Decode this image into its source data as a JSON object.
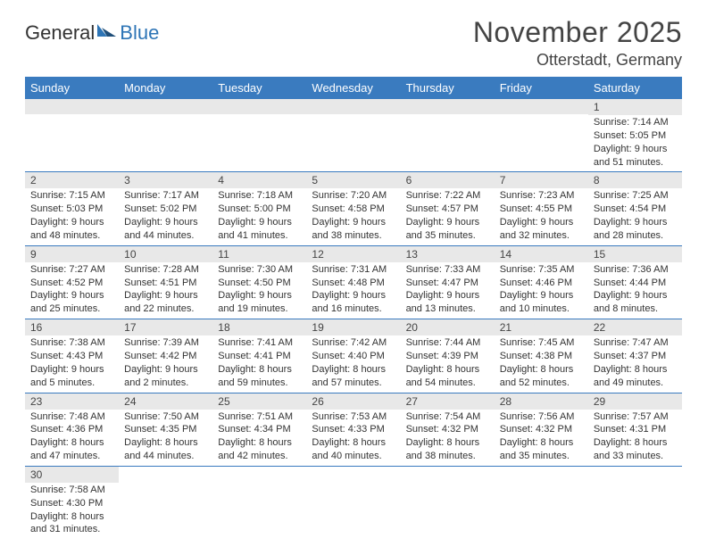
{
  "logo": {
    "general": "General",
    "blue": "Blue"
  },
  "title": "November 2025",
  "location": "Otterstadt, Germany",
  "colors": {
    "header_bg": "#3a7bbf",
    "header_text": "#ffffff",
    "daynum_bg": "#e8e8e8",
    "border": "#3a7bbf",
    "logo_blue": "#2e75b6",
    "text": "#333333"
  },
  "weekdays": [
    "Sunday",
    "Monday",
    "Tuesday",
    "Wednesday",
    "Thursday",
    "Friday",
    "Saturday"
  ],
  "weeks": [
    [
      null,
      null,
      null,
      null,
      null,
      null,
      {
        "n": "1",
        "sunrise": "Sunrise: 7:14 AM",
        "sunset": "Sunset: 5:05 PM",
        "day1": "Daylight: 9 hours",
        "day2": "and 51 minutes."
      }
    ],
    [
      {
        "n": "2",
        "sunrise": "Sunrise: 7:15 AM",
        "sunset": "Sunset: 5:03 PM",
        "day1": "Daylight: 9 hours",
        "day2": "and 48 minutes."
      },
      {
        "n": "3",
        "sunrise": "Sunrise: 7:17 AM",
        "sunset": "Sunset: 5:02 PM",
        "day1": "Daylight: 9 hours",
        "day2": "and 44 minutes."
      },
      {
        "n": "4",
        "sunrise": "Sunrise: 7:18 AM",
        "sunset": "Sunset: 5:00 PM",
        "day1": "Daylight: 9 hours",
        "day2": "and 41 minutes."
      },
      {
        "n": "5",
        "sunrise": "Sunrise: 7:20 AM",
        "sunset": "Sunset: 4:58 PM",
        "day1": "Daylight: 9 hours",
        "day2": "and 38 minutes."
      },
      {
        "n": "6",
        "sunrise": "Sunrise: 7:22 AM",
        "sunset": "Sunset: 4:57 PM",
        "day1": "Daylight: 9 hours",
        "day2": "and 35 minutes."
      },
      {
        "n": "7",
        "sunrise": "Sunrise: 7:23 AM",
        "sunset": "Sunset: 4:55 PM",
        "day1": "Daylight: 9 hours",
        "day2": "and 32 minutes."
      },
      {
        "n": "8",
        "sunrise": "Sunrise: 7:25 AM",
        "sunset": "Sunset: 4:54 PM",
        "day1": "Daylight: 9 hours",
        "day2": "and 28 minutes."
      }
    ],
    [
      {
        "n": "9",
        "sunrise": "Sunrise: 7:27 AM",
        "sunset": "Sunset: 4:52 PM",
        "day1": "Daylight: 9 hours",
        "day2": "and 25 minutes."
      },
      {
        "n": "10",
        "sunrise": "Sunrise: 7:28 AM",
        "sunset": "Sunset: 4:51 PM",
        "day1": "Daylight: 9 hours",
        "day2": "and 22 minutes."
      },
      {
        "n": "11",
        "sunrise": "Sunrise: 7:30 AM",
        "sunset": "Sunset: 4:50 PM",
        "day1": "Daylight: 9 hours",
        "day2": "and 19 minutes."
      },
      {
        "n": "12",
        "sunrise": "Sunrise: 7:31 AM",
        "sunset": "Sunset: 4:48 PM",
        "day1": "Daylight: 9 hours",
        "day2": "and 16 minutes."
      },
      {
        "n": "13",
        "sunrise": "Sunrise: 7:33 AM",
        "sunset": "Sunset: 4:47 PM",
        "day1": "Daylight: 9 hours",
        "day2": "and 13 minutes."
      },
      {
        "n": "14",
        "sunrise": "Sunrise: 7:35 AM",
        "sunset": "Sunset: 4:46 PM",
        "day1": "Daylight: 9 hours",
        "day2": "and 10 minutes."
      },
      {
        "n": "15",
        "sunrise": "Sunrise: 7:36 AM",
        "sunset": "Sunset: 4:44 PM",
        "day1": "Daylight: 9 hours",
        "day2": "and 8 minutes."
      }
    ],
    [
      {
        "n": "16",
        "sunrise": "Sunrise: 7:38 AM",
        "sunset": "Sunset: 4:43 PM",
        "day1": "Daylight: 9 hours",
        "day2": "and 5 minutes."
      },
      {
        "n": "17",
        "sunrise": "Sunrise: 7:39 AM",
        "sunset": "Sunset: 4:42 PM",
        "day1": "Daylight: 9 hours",
        "day2": "and 2 minutes."
      },
      {
        "n": "18",
        "sunrise": "Sunrise: 7:41 AM",
        "sunset": "Sunset: 4:41 PM",
        "day1": "Daylight: 8 hours",
        "day2": "and 59 minutes."
      },
      {
        "n": "19",
        "sunrise": "Sunrise: 7:42 AM",
        "sunset": "Sunset: 4:40 PM",
        "day1": "Daylight: 8 hours",
        "day2": "and 57 minutes."
      },
      {
        "n": "20",
        "sunrise": "Sunrise: 7:44 AM",
        "sunset": "Sunset: 4:39 PM",
        "day1": "Daylight: 8 hours",
        "day2": "and 54 minutes."
      },
      {
        "n": "21",
        "sunrise": "Sunrise: 7:45 AM",
        "sunset": "Sunset: 4:38 PM",
        "day1": "Daylight: 8 hours",
        "day2": "and 52 minutes."
      },
      {
        "n": "22",
        "sunrise": "Sunrise: 7:47 AM",
        "sunset": "Sunset: 4:37 PM",
        "day1": "Daylight: 8 hours",
        "day2": "and 49 minutes."
      }
    ],
    [
      {
        "n": "23",
        "sunrise": "Sunrise: 7:48 AM",
        "sunset": "Sunset: 4:36 PM",
        "day1": "Daylight: 8 hours",
        "day2": "and 47 minutes."
      },
      {
        "n": "24",
        "sunrise": "Sunrise: 7:50 AM",
        "sunset": "Sunset: 4:35 PM",
        "day1": "Daylight: 8 hours",
        "day2": "and 44 minutes."
      },
      {
        "n": "25",
        "sunrise": "Sunrise: 7:51 AM",
        "sunset": "Sunset: 4:34 PM",
        "day1": "Daylight: 8 hours",
        "day2": "and 42 minutes."
      },
      {
        "n": "26",
        "sunrise": "Sunrise: 7:53 AM",
        "sunset": "Sunset: 4:33 PM",
        "day1": "Daylight: 8 hours",
        "day2": "and 40 minutes."
      },
      {
        "n": "27",
        "sunrise": "Sunrise: 7:54 AM",
        "sunset": "Sunset: 4:32 PM",
        "day1": "Daylight: 8 hours",
        "day2": "and 38 minutes."
      },
      {
        "n": "28",
        "sunrise": "Sunrise: 7:56 AM",
        "sunset": "Sunset: 4:32 PM",
        "day1": "Daylight: 8 hours",
        "day2": "and 35 minutes."
      },
      {
        "n": "29",
        "sunrise": "Sunrise: 7:57 AM",
        "sunset": "Sunset: 4:31 PM",
        "day1": "Daylight: 8 hours",
        "day2": "and 33 minutes."
      }
    ],
    [
      {
        "n": "30",
        "sunrise": "Sunrise: 7:58 AM",
        "sunset": "Sunset: 4:30 PM",
        "day1": "Daylight: 8 hours",
        "day2": "and 31 minutes."
      },
      null,
      null,
      null,
      null,
      null,
      null
    ]
  ]
}
